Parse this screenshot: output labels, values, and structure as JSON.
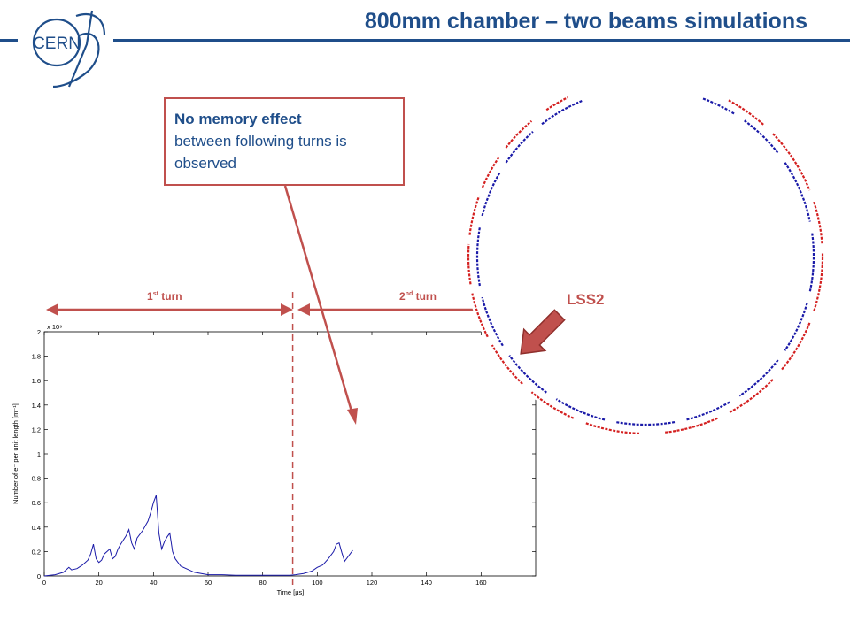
{
  "slide": {
    "title": "800mm chamber – two beams simulations",
    "logo_text": "CERN",
    "accent_color": "#1f4e8a",
    "highlight_color": "#c0504d"
  },
  "callout": {
    "lead": "No memory effect",
    "rest": "between following turns is observed"
  },
  "turns": {
    "first_num": "1",
    "first_sup": "st",
    "first_word": " turn",
    "second_num": "2",
    "second_sup": "nd",
    "second_word": " turn"
  },
  "ring": {
    "label": "LSS2",
    "inner_color": "#1a1aa8",
    "outer_color": "#d42020"
  },
  "chart_data": {
    "type": "line",
    "title": "",
    "xlabel": "Time [μs]",
    "ylabel": "Number of e⁻ per unit length [m⁻¹]",
    "y_multiplier": "x 10⁹",
    "xlim": [
      0,
      180
    ],
    "ylim": [
      0,
      2
    ],
    "xticks": [
      0,
      20,
      40,
      60,
      80,
      100,
      120,
      140,
      160
    ],
    "yticks": [
      0,
      0.2,
      0.4,
      0.6,
      0.8,
      1,
      1.2,
      1.4,
      1.6,
      1.8,
      2
    ],
    "tick_labels_x": [
      "0",
      "20",
      "40",
      "60",
      "80",
      "100",
      "120",
      "140",
      "160"
    ],
    "tick_labels_y": [
      "0",
      "0.2",
      "0.4",
      "0.6",
      "0.8",
      "1",
      "1.2",
      "1.4",
      "1.6",
      "1.8",
      "2"
    ],
    "grid": false,
    "turn_boundary_x": 91,
    "series": [
      {
        "color": "#1a1aa8",
        "x": [
          0,
          4,
          7,
          9,
          10,
          12,
          14,
          16,
          17,
          18,
          19,
          20,
          21,
          22,
          24,
          25,
          26,
          27,
          28,
          30,
          31,
          32,
          33,
          34,
          36,
          38,
          39,
          40,
          41,
          42,
          43,
          44,
          45,
          46,
          47,
          48,
          50,
          55,
          60,
          65,
          70,
          75,
          80,
          85,
          88,
          90,
          92,
          95,
          98,
          100,
          102,
          104,
          106,
          107,
          108,
          109,
          110,
          112,
          113
        ],
        "y": [
          0,
          0.01,
          0.03,
          0.07,
          0.05,
          0.06,
          0.09,
          0.13,
          0.18,
          0.26,
          0.14,
          0.11,
          0.13,
          0.18,
          0.22,
          0.14,
          0.16,
          0.22,
          0.26,
          0.33,
          0.38,
          0.27,
          0.22,
          0.31,
          0.37,
          0.45,
          0.52,
          0.6,
          0.66,
          0.35,
          0.22,
          0.28,
          0.32,
          0.35,
          0.2,
          0.14,
          0.08,
          0.03,
          0.01,
          0.01,
          0.005,
          0.005,
          0.005,
          0.005,
          0.005,
          0.005,
          0.01,
          0.02,
          0.04,
          0.07,
          0.09,
          0.14,
          0.2,
          0.26,
          0.27,
          0.19,
          0.12,
          0.18,
          0.21
        ]
      }
    ]
  }
}
